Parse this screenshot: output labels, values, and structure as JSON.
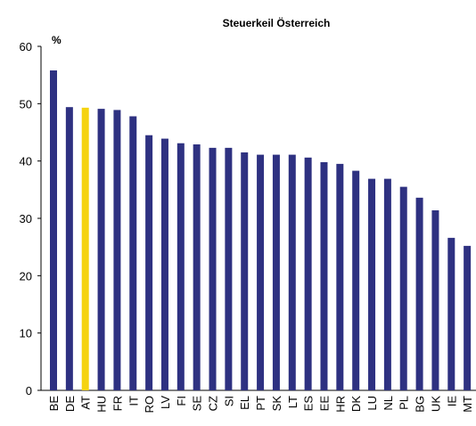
{
  "chart_data": {
    "type": "bar",
    "title": "Steuerkeil Österreich",
    "y_label": "%",
    "categories": [
      "BE",
      "DE",
      "AT",
      "HU",
      "FR",
      "IT",
      "RO",
      "LV",
      "FI",
      "SE",
      "CZ",
      "SI",
      "EL",
      "PT",
      "SK",
      "LT",
      "ES",
      "EE",
      "HR",
      "DK",
      "LU",
      "NL",
      "PL",
      "BG",
      "UK",
      "IE",
      "MT"
    ],
    "values": [
      55.8,
      49.4,
      49.3,
      49.1,
      48.9,
      47.8,
      44.5,
      43.9,
      43.1,
      42.9,
      42.3,
      42.3,
      41.5,
      41.1,
      41.1,
      41.1,
      40.6,
      39.8,
      39.5,
      38.3,
      36.9,
      36.9,
      35.5,
      33.6,
      31.4,
      26.6,
      25.2
    ],
    "colors": [
      "#2e3181",
      "#2e3181",
      "#f5d311",
      "#2e3181",
      "#2e3181",
      "#2e3181",
      "#2e3181",
      "#2e3181",
      "#2e3181",
      "#2e3181",
      "#2e3181",
      "#2e3181",
      "#2e3181",
      "#2e3181",
      "#2e3181",
      "#2e3181",
      "#2e3181",
      "#2e3181",
      "#2e3181",
      "#2e3181",
      "#2e3181",
      "#2e3181",
      "#2e3181",
      "#2e3181",
      "#2e3181",
      "#2e3181",
      "#2e3181"
    ],
    "ylim": [
      0,
      60
    ],
    "yticks": [
      0,
      10,
      20,
      30,
      40,
      50,
      60
    ],
    "grid": false
  }
}
